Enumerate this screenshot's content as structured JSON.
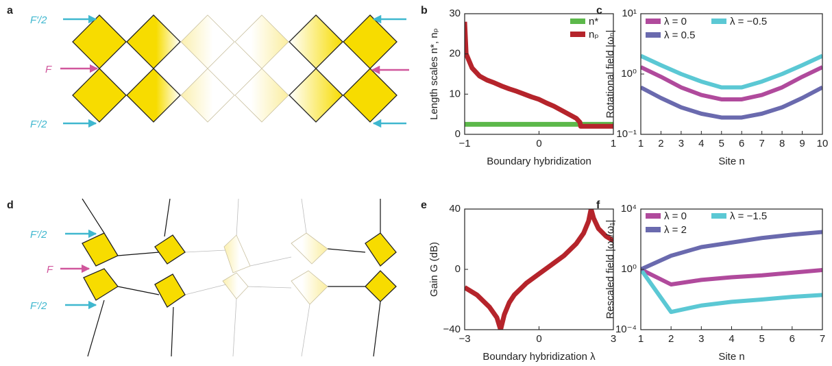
{
  "panel_labels": [
    "a",
    "b",
    "c",
    "d",
    "e",
    "f"
  ],
  "diagram_a": {
    "arrow_labels": [
      "F′/2",
      "F",
      "F′/2"
    ]
  },
  "diagram_d": {
    "arrow_labels": [
      "F′/2",
      "F",
      "F′/2"
    ]
  },
  "chart_data": [
    {
      "type": "line",
      "xlabel": "Boundary hybridization",
      "ylabel": "Length scales n*, nₚ",
      "xlim": [
        -1,
        1
      ],
      "xticks": [
        {
          "value": -1,
          "label": "−1"
        },
        0,
        1
      ],
      "ylim": [
        0,
        30
      ],
      "yticks": [
        0,
        10,
        20,
        30
      ],
      "log_y": false,
      "legend": "upper right",
      "series": [
        {
          "name": "n*",
          "color": "#5cb84a",
          "x": [
            -1,
            1
          ],
          "values": [
            2.5,
            2.5
          ]
        },
        {
          "name": "nₚ",
          "color": "#b5242b",
          "x": [
            -1,
            -0.98,
            -0.9,
            -0.8,
            -0.7,
            -0.6,
            -0.5,
            -0.4,
            -0.3,
            -0.2,
            -0.1,
            0,
            0.1,
            0.2,
            0.3,
            0.4,
            0.5,
            0.55,
            0.56,
            0.6,
            0.8,
            1
          ],
          "values": [
            28,
            20,
            16.5,
            14.5,
            13.5,
            12.8,
            12,
            11.3,
            10.7,
            10,
            9.3,
            8.7,
            7.8,
            7,
            6,
            5,
            4,
            3,
            2,
            2,
            2,
            2
          ]
        }
      ]
    },
    {
      "type": "line",
      "xlabel": "Site n",
      "ylabel": "Rotational field |ωₙ|",
      "x": [
        1,
        2,
        3,
        4,
        5,
        6,
        7,
        8,
        9,
        10
      ],
      "xlim": [
        1,
        10
      ],
      "xticks": [
        1,
        2,
        3,
        4,
        5,
        6,
        7,
        8,
        9,
        10
      ],
      "ylim": [
        0.1,
        10
      ],
      "yticks": [
        {
          "value": 0.1,
          "label": "10⁻¹"
        },
        {
          "value": 1,
          "label": "10⁰"
        },
        {
          "value": 10,
          "label": "10¹"
        }
      ],
      "log_y": true,
      "legend": "upper left",
      "series": [
        {
          "name": "λ = 0",
          "color": "#b04a9c",
          "values": [
            1.3,
            0.9,
            0.6,
            0.45,
            0.38,
            0.38,
            0.45,
            0.6,
            0.9,
            1.3
          ]
        },
        {
          "name": "λ = −0.5",
          "color": "#5bc8d4",
          "values": [
            2.0,
            1.4,
            1.0,
            0.75,
            0.6,
            0.6,
            0.75,
            1.0,
            1.4,
            2.0
          ]
        },
        {
          "name": "λ = 0.5",
          "color": "#6a6aae",
          "values": [
            0.6,
            0.4,
            0.28,
            0.22,
            0.19,
            0.19,
            0.22,
            0.28,
            0.4,
            0.6
          ]
        }
      ]
    },
    {
      "type": "line",
      "xlabel": "Boundary hybridization λ",
      "ylabel": "Gain G (dB)",
      "xlim": [
        -3,
        3
      ],
      "xticks": [
        {
          "value": -3,
          "label": "−3"
        },
        0,
        3
      ],
      "ylim": [
        -40,
        40
      ],
      "yticks": [
        {
          "value": -40,
          "label": "−40"
        },
        0,
        40
      ],
      "log_y": false,
      "series": [
        {
          "color": "#b5242b",
          "x": [
            -3,
            -2.5,
            -2,
            -1.7,
            -1.55,
            -1.4,
            -1.2,
            -1,
            -0.5,
            0,
            0.5,
            1,
            1.5,
            1.8,
            2,
            2.1,
            2.2,
            2.4,
            2.7,
            3
          ],
          "values": [
            -12,
            -17,
            -25,
            -32,
            -40,
            -30,
            -22,
            -17,
            -9,
            -3,
            3,
            9,
            17,
            24,
            32,
            40,
            34,
            27,
            22,
            19
          ]
        }
      ]
    },
    {
      "type": "line",
      "xlabel": "Site n",
      "ylabel": "Rescaled field |ωₙ/ω₁|",
      "x": [
        1,
        2,
        3,
        4,
        5,
        6,
        7
      ],
      "xlim": [
        1,
        7
      ],
      "xticks": [
        1,
        2,
        3,
        4,
        5,
        6,
        7
      ],
      "ylim": [
        0.0001,
        10000
      ],
      "yticks": [
        {
          "value": 0.0001,
          "label": "10⁻⁴"
        },
        {
          "value": 1,
          "label": "10⁰"
        },
        {
          "value": 10000,
          "label": "10⁴"
        }
      ],
      "log_y": true,
      "legend": "upper left",
      "series": [
        {
          "name": "λ = 0",
          "color": "#b04a9c",
          "values": [
            1,
            0.1,
            0.2,
            0.3,
            0.4,
            0.6,
            0.9
          ]
        },
        {
          "name": "λ = −1.5",
          "color": "#5bc8d4",
          "values": [
            1,
            0.0015,
            0.004,
            0.007,
            0.01,
            0.015,
            0.02
          ]
        },
        {
          "name": "λ = 2",
          "color": "#6a6aae",
          "values": [
            1,
            8,
            30,
            60,
            120,
            200,
            300
          ]
        }
      ]
    }
  ]
}
